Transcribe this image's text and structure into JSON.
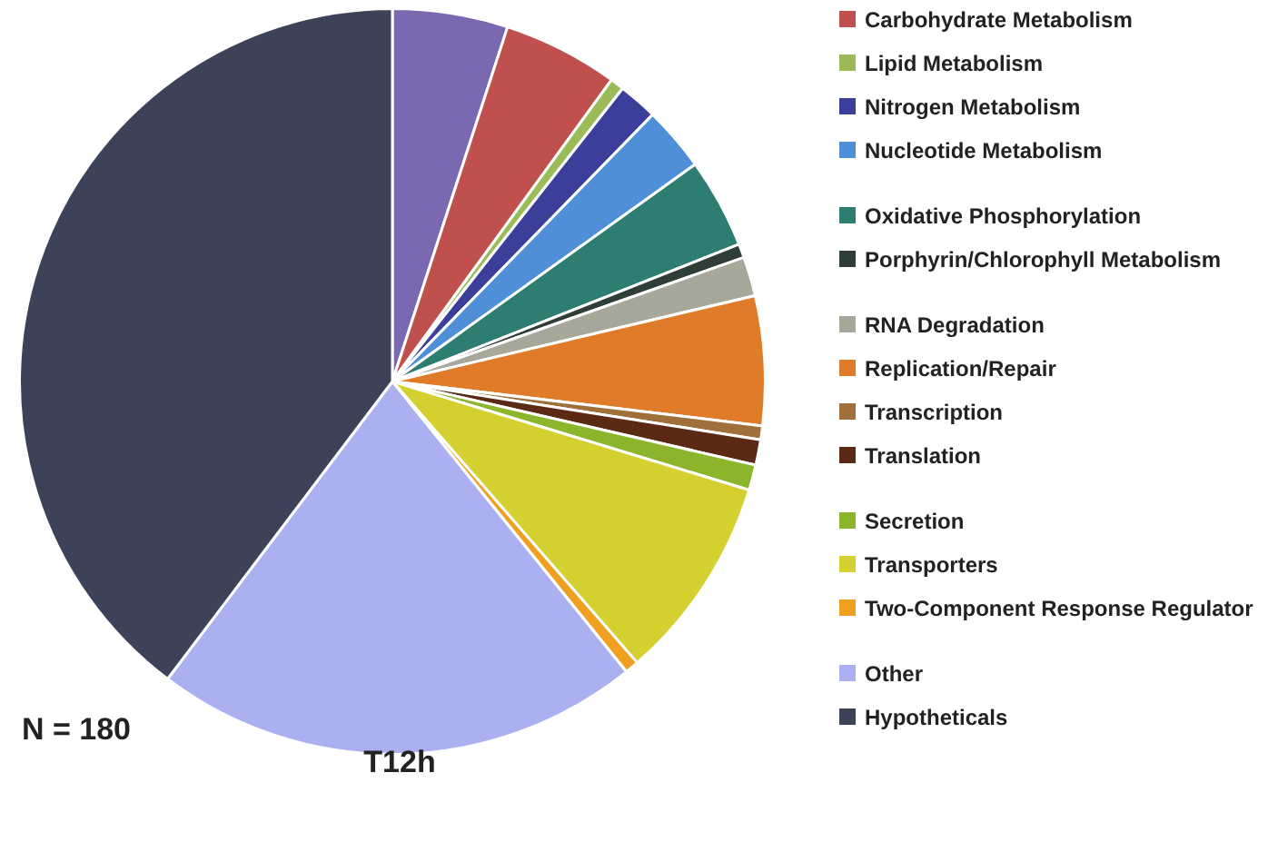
{
  "chart_data": {
    "type": "pie",
    "title": "T12h",
    "annotations": [
      "N = 180"
    ],
    "legend": "right",
    "categories": [
      null,
      "Carbohydrate Metabolism",
      "Lipid Metabolism",
      "Nitrogen Metabolism",
      "Nucleotide Metabolism",
      "Oxidative Phosphorylation",
      "Porphyrin/Chlorophyll Metabolism",
      "RNA Degradation",
      "Replication/Repair",
      "Transcription",
      "Translation",
      "Secretion",
      "Transporters",
      "Two-Component Response Regulator",
      "Other",
      "Hypotheticals"
    ],
    "values": [
      5,
      5,
      0.6,
      1.7,
      2.8,
      3.9,
      0.6,
      1.7,
      5.6,
      0.6,
      1.1,
      1.1,
      8.9,
      0.6,
      21.1,
      39.7
    ],
    "colors": [
      "#7a68b0",
      "#c0504d",
      "#9bbb59",
      "#3c3f9a",
      "#4f8fd8",
      "#2e7d73",
      "#2f3f38",
      "#a8a89a",
      "#e07b2a",
      "#a0703a",
      "#5a2a14",
      "#8db52c",
      "#d4d030",
      "#f0a020",
      "#aab0f0",
      "#3c4258"
    ]
  }
}
